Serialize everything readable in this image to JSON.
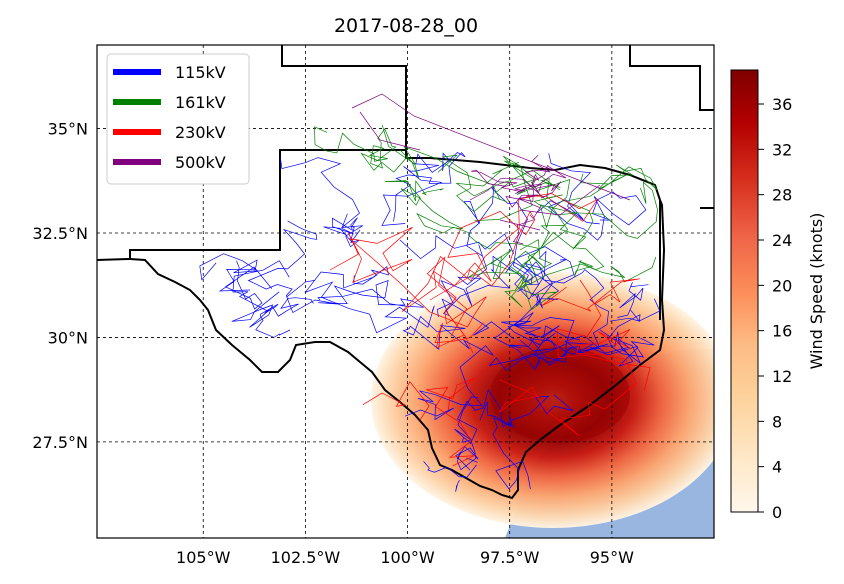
{
  "chart_data": {
    "type": "heatmap",
    "title": "2017-08-28_00",
    "x_ticks": [
      "105°W",
      "102.5°W",
      "100°W",
      "97.5°W",
      "95°W"
    ],
    "x_tick_values": [
      -105,
      -102.5,
      -100,
      -97.5,
      -95
    ],
    "y_ticks": [
      "35°N",
      "32.5°N",
      "30°N",
      "27.5°N"
    ],
    "y_tick_values": [
      35,
      32.5,
      30,
      27.5
    ],
    "xlim": [
      -107.6,
      -92.5
    ],
    "ylim": [
      25.2,
      37.0
    ],
    "grid": true,
    "legend_position": "top-left",
    "legend": [
      {
        "label": "115kV",
        "color": "#0000ff"
      },
      {
        "label": "161kV",
        "color": "#008000"
      },
      {
        "label": "230kV",
        "color": "#ff0000"
      },
      {
        "label": "500kV",
        "color": "#800080"
      }
    ],
    "colorbar": {
      "label": "Wind Speed (knots)",
      "range": [
        0,
        39
      ],
      "ticks": [
        "0",
        "4",
        "8",
        "12",
        "16",
        "20",
        "24",
        "28",
        "32",
        "36"
      ],
      "tick_values": [
        0,
        4,
        8,
        12,
        16,
        20,
        24,
        28,
        32,
        36
      ],
      "colormap": "OrRd"
    },
    "wind_field": {
      "center_lon": -95.6,
      "center_lat": 28.5,
      "outer_radius_lon": 4.0,
      "outer_radius_lat": 3.4,
      "max_wind": 39
    },
    "colors": {
      "ocean": "#98b6e0",
      "border": "#000000",
      "grid": "#000000"
    }
  }
}
